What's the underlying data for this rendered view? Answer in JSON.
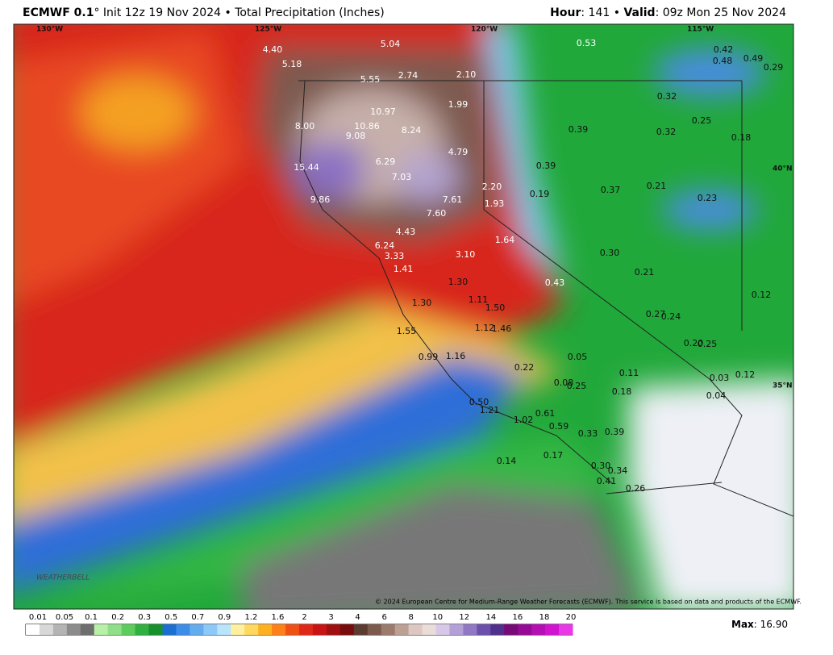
{
  "header": {
    "model": "ECMWF 0.1",
    "degree": "°",
    "init": "Init 12z 19 Nov 2024",
    "bullet": "•",
    "product": "Total Precipitation (Inches)",
    "hour_label": "Hour",
    "hour": ": 141",
    "bullet2": "•",
    "valid_label": "Valid",
    "valid": ": 09z Mon 25 Nov 2024"
  },
  "map": {
    "grid_labels": [
      "130°W",
      "125°W",
      "120°W",
      "115°W",
      "40°N",
      "35°N"
    ],
    "labels": [
      "4.40",
      "5.18",
      "5.04",
      "5.55",
      "2.74",
      "2.10",
      "1.99",
      "10.97",
      "10.86",
      "9.08",
      "8.24",
      "8.00",
      "4.79",
      "6.29",
      "15.44",
      "7.03",
      "2.20",
      "9.86",
      "7.61",
      "1.93",
      "7.60",
      "4.43",
      "6.24",
      "1.64",
      "3.33",
      "3.10",
      "1.41",
      "1.30",
      "0.43",
      "1.30",
      "1.11",
      "1.50",
      "1.55",
      "1.12",
      "1.46",
      "0.99",
      "1.16",
      "0.22",
      "0.05",
      "0.08",
      "0.25",
      "0.11",
      "0.18",
      "0.50",
      "1.21",
      "1.02",
      "0.61",
      "0.59",
      "0.33",
      "0.39",
      "0.14",
      "0.17",
      "0.30",
      "0.34",
      "0.41",
      "0.26",
      "0.53",
      "0.42",
      "0.48",
      "0.49",
      "0.29",
      "0.32",
      "0.25",
      "0.39",
      "0.32",
      "0.18",
      "0.39",
      "0.37",
      "0.21",
      "0.19",
      "0.23",
      "0.30",
      "0.21",
      "0.12",
      "0.27",
      "0.24",
      "0.20",
      "0.25",
      "0.03",
      "0.12",
      "0.04"
    ],
    "copyright": "© 2024 European Centre for Medium-Range Weather Forecasts (ECMWF). This service is based on data and products of the ECMWF.",
    "logo": "WEATHERBELL"
  },
  "colorbar": {
    "ticks": [
      "0.01",
      "0.05",
      "0.1",
      "0.2",
      "0.3",
      "0.5",
      "0.7",
      "0.9",
      "1.2",
      "1.6",
      "2",
      "3",
      "4",
      "6",
      "8",
      "10",
      "12",
      "14",
      "16",
      "18",
      "20"
    ],
    "max_label": "Max",
    "max": ": 16.90"
  }
}
